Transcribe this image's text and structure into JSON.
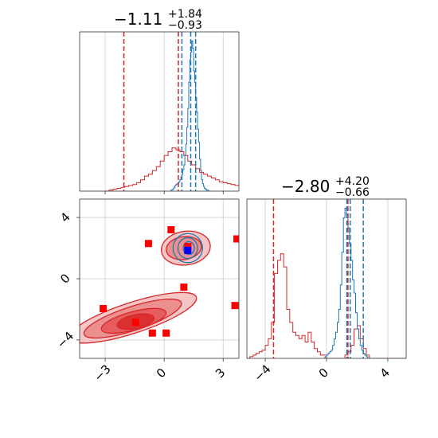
{
  "chart_data": {
    "type": "corner",
    "series": [
      {
        "name": "",
        "color": "#d62728"
      },
      {
        "name": "",
        "color": "#1f77b4"
      }
    ],
    "panels": [
      {
        "id": "hist-x",
        "type": "histogram",
        "title": {
          "value": "−1.11",
          "sup": "+1.84",
          "sub": "−0.93"
        },
        "xlim": [
          -4.3,
          3.8
        ],
        "grid": true,
        "quantile_lines": {
          "red": [
            -2.05,
            0.72
          ],
          "blue": [
            0.9,
            1.35,
            1.6
          ]
        },
        "series": [
          {
            "color": "#d62728",
            "bin_start": -3.0,
            "bin_width": 0.2,
            "counts": [
              0,
              0.5,
              1,
              1.5,
              2,
              2.5,
              3,
              3.5,
              4.5,
              6,
              8,
              9,
              11,
              13,
              16,
              19,
              21,
              23,
              22,
              21,
              19,
              16,
              14,
              12,
              10,
              9,
              8,
              7,
              6,
              5,
              4.5,
              4,
              3.5,
              3,
              3,
              3.5,
              5,
              7.5,
              8.5,
              9,
              8,
              7,
              6.5,
              5.5,
              3.5,
              2.5,
              1.5,
              1,
              0.5,
              0,
              0
            ]
          },
          {
            "color": "#1f77b4",
            "bin_start": 0.3,
            "bin_width": 0.05,
            "counts": [
              0,
              0.5,
              0.8,
              1.2,
              2,
              3,
              3.5,
              4,
              4.2,
              5,
              6,
              7.5,
              9,
              11.5,
              14,
              19,
              25,
              34,
              44,
              58,
              70,
              74,
              80,
              76,
              64,
              58,
              50,
              42,
              33,
              26,
              17,
              11,
              6,
              4,
              2.5,
              1.5,
              1,
              0.5,
              0.5,
              0,
              0,
              0
            ]
          }
        ]
      },
      {
        "id": "scatter-2d",
        "type": "scatter",
        "xlim": [
          -4.3,
          3.8
        ],
        "ylim": [
          -5.2,
          5.2
        ],
        "grid": true,
        "xticks": [
          -3,
          0,
          3
        ],
        "yticks": [
          -4,
          0,
          4
        ],
        "markers": {
          "red": [
            [
              -0.8,
              2.3
            ],
            [
              0.35,
              3.2
            ],
            [
              1.2,
              2.1
            ],
            [
              3.7,
              2.6
            ],
            [
              1.0,
              -0.55
            ],
            [
              3.6,
              -1.75
            ],
            [
              -3.1,
              -1.95
            ],
            [
              -1.45,
              -2.85
            ],
            [
              -0.6,
              -3.55
            ],
            [
              0.1,
              -3.55
            ]
          ],
          "blue": [
            [
              1.2,
              1.85
            ]
          ]
        },
        "contours": {
          "red": [
            {
              "cx": 1.1,
              "cy": 2.0,
              "rx": 1.25,
              "ry": 1.1,
              "angle": -8,
              "fill": "#f6c6c6"
            },
            {
              "cx": 1.0,
              "cy": 2.0,
              "rx": 0.9,
              "ry": 0.75,
              "angle": -8,
              "fill": "#ec8f8f"
            },
            {
              "cx": -1.6,
              "cy": -2.55,
              "rx": 3.4,
              "ry": 1.0,
              "angle": -18,
              "fill": "#f6c6c6"
            },
            {
              "cx": -1.6,
              "cy": -2.6,
              "rx": 2.6,
              "ry": 0.78,
              "angle": -18,
              "fill": "#ec8f8f"
            },
            {
              "cx": -1.55,
              "cy": -2.75,
              "rx": 1.7,
              "ry": 0.6,
              "angle": -15,
              "fill": "#e55d5d"
            },
            {
              "cx": -1.45,
              "cy": -2.8,
              "rx": 0.95,
              "ry": 0.45,
              "angle": -12,
              "fill": "#dc2f2f"
            }
          ],
          "blue": [
            {
              "cx": 1.2,
              "cy": 2.0,
              "rx": 0.75,
              "ry": 0.95,
              "angle": 0
            },
            {
              "cx": 1.2,
              "cy": 2.0,
              "rx": 0.5,
              "ry": 0.68,
              "angle": 0
            },
            {
              "cx": 1.25,
              "cy": 2.0,
              "rx": 0.28,
              "ry": 0.42,
              "angle": 0
            }
          ]
        }
      },
      {
        "id": "hist-y",
        "type": "histogram",
        "title": {
          "value": "−2.80",
          "sup": "+4.20",
          "sub": "−0.66"
        },
        "xlim": [
          -5.2,
          5.2
        ],
        "grid": true,
        "xticks": [
          -4,
          0,
          4
        ],
        "quantile_lines": {
          "red": [
            -3.46,
            1.4
          ],
          "blue": [
            1.33,
            1.55,
            2.4
          ]
        },
        "series": [
          {
            "color": "#d62728",
            "bin_start": -5.2,
            "bin_width": 0.2,
            "counts": [
              0,
              1,
              2,
              3,
              4,
              5,
              8,
              12,
              22,
              52,
              60,
              64,
              56,
              30,
              22,
              16,
              14,
              12,
              14,
              10,
              16,
              10,
              6,
              4,
              2,
              2,
              0,
              0,
              0,
              0,
              0,
              0,
              2,
              4,
              8,
              18,
              20,
              12,
              6,
              2,
              0,
              0,
              0,
              0,
              0,
              0,
              0,
              0,
              0,
              0,
              0,
              0
            ]
          },
          {
            "color": "#1f77b4",
            "bin_start": -0.2,
            "bin_width": 0.1,
            "counts": [
              0,
              1,
              2,
              3,
              4,
              5,
              8,
              12,
              16,
              22,
              30,
              45,
              65,
              86,
              92,
              88,
              80,
              70,
              60,
              48,
              40,
              28,
              18,
              12,
              8,
              5,
              3,
              2,
              1,
              0,
              0,
              0
            ]
          }
        ]
      }
    ]
  }
}
